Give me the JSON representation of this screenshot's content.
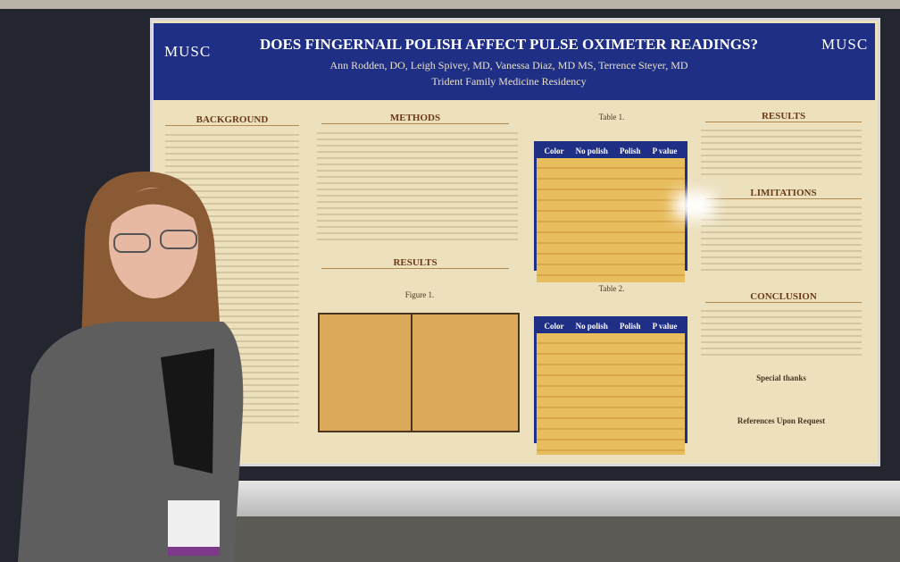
{
  "poster": {
    "logo_left": "MUSC",
    "logo_right": "MUSC",
    "title": "DOES FINGERNAIL POLISH AFFECT PULSE OXIMETER READINGS?",
    "authors": "Ann Rodden, DO, Leigh Spivey, MD, Vanessa Diaz, MD MS, Terrence Steyer, MD",
    "affiliation": "Trident Family Medicine Residency",
    "sections": {
      "background": "BACKGROUND",
      "methods": "METHODS",
      "results_left": "RESULTS",
      "results_right": "RESULTS",
      "limitations": "LIMITATIONS",
      "conclusion": "CONCLUSION"
    },
    "table1": {
      "caption": "Table 1.",
      "header": [
        "Color",
        "No polish",
        "Polish",
        "P value"
      ]
    },
    "table2": {
      "caption": "Table 2.",
      "header": [
        "Color",
        "No polish",
        "Polish",
        "P value"
      ]
    },
    "figure": {
      "caption": "Figure 1."
    },
    "special_thanks": "Special thanks",
    "references": "References Upon Request"
  }
}
